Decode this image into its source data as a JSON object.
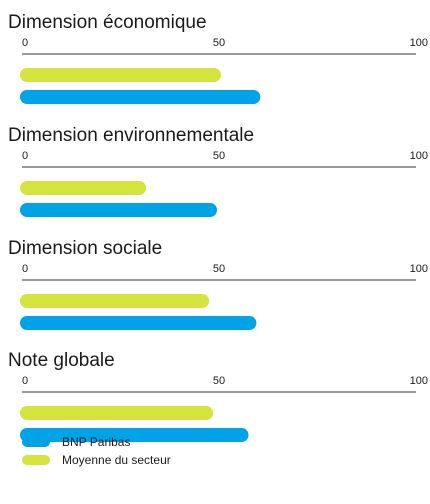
{
  "chart_data": [
    {
      "type": "bar",
      "title": "Dimension économique",
      "xlim": [
        0,
        100
      ],
      "ticks": [
        0,
        50,
        100
      ],
      "series": [
        {
          "name": "Moyenne du secteur",
          "value": 51
        },
        {
          "name": "BNP Paribas",
          "value": 61
        }
      ]
    },
    {
      "type": "bar",
      "title": "Dimension environnementale",
      "xlim": [
        0,
        100
      ],
      "ticks": [
        0,
        50,
        100
      ],
      "series": [
        {
          "name": "Moyenne du secteur",
          "value": 32
        },
        {
          "name": "BNP Paribas",
          "value": 50
        }
      ]
    },
    {
      "type": "bar",
      "title": "Dimension sociale",
      "xlim": [
        0,
        100
      ],
      "ticks": [
        0,
        50,
        100
      ],
      "series": [
        {
          "name": "Moyenne du secteur",
          "value": 48
        },
        {
          "name": "BNP Paribas",
          "value": 60
        }
      ]
    },
    {
      "type": "bar",
      "title": "Note globale",
      "xlim": [
        0,
        100
      ],
      "ticks": [
        0,
        50,
        100
      ],
      "series": [
        {
          "name": "Moyenne du secteur",
          "value": 49
        },
        {
          "name": "BNP Paribas",
          "value": 58
        }
      ]
    }
  ],
  "legend": [
    {
      "label": "BNP Paribas",
      "color": "#00a3e6"
    },
    {
      "label": "Moyenne du secteur",
      "color": "#d4e43c"
    }
  ],
  "colors": {
    "BNP Paribas": "#00a3e6",
    "Moyenne du secteur": "#d4e43c",
    "axis": "#333333"
  }
}
